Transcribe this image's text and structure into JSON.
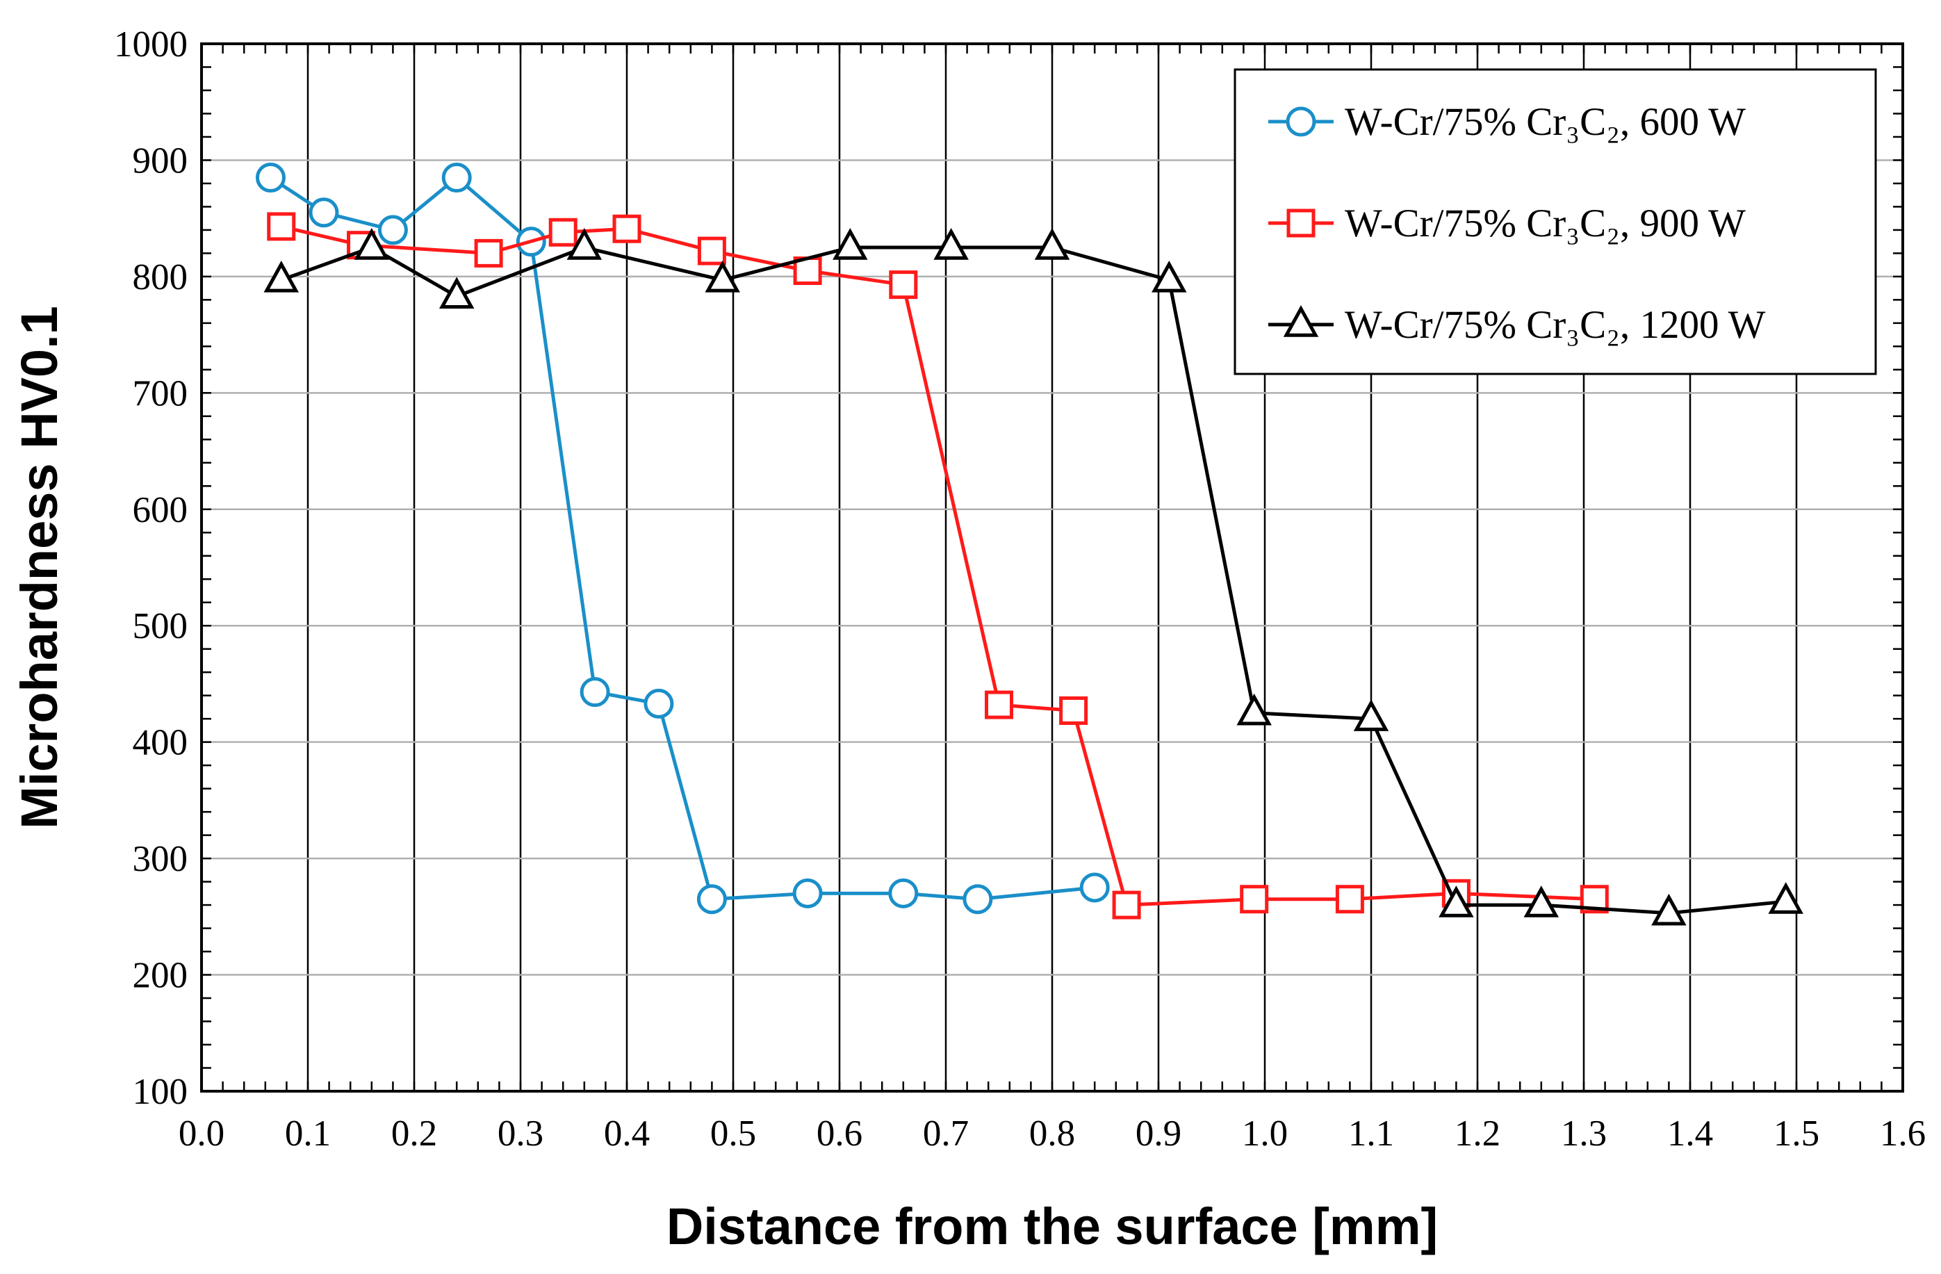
{
  "chart_data": {
    "type": "line",
    "title": "",
    "xlabel": "Distance from the surface [mm]",
    "ylabel": "Microhardness HV0.1",
    "xlim": [
      0.0,
      1.6
    ],
    "ylim": [
      100,
      1000
    ],
    "x_ticks": [
      "0.0",
      "0.1",
      "0.2",
      "0.3",
      "0.4",
      "0.5",
      "0.6",
      "0.7",
      "0.8",
      "0.9",
      "1.0",
      "1.1",
      "1.2",
      "1.3",
      "1.4",
      "1.5",
      "1.6"
    ],
    "y_ticks": [
      "100",
      "200",
      "300",
      "400",
      "500",
      "600",
      "700",
      "800",
      "900",
      "1000"
    ],
    "grid": true,
    "legend_position": "top-right",
    "series": [
      {
        "name": "W-Cr/75% Cr₃C₂, 600 W",
        "color": "#1a8fc9",
        "marker": "circle",
        "x": [
          0.065,
          0.115,
          0.18,
          0.24,
          0.31,
          0.37,
          0.43,
          0.48,
          0.57,
          0.66,
          0.73,
          0.84
        ],
        "y": [
          885,
          855,
          840,
          885,
          830,
          443,
          433,
          265,
          270,
          270,
          265,
          275
        ]
      },
      {
        "name": "W-Cr/75% Cr₃C₂, 900 W",
        "color": "#ff1a1a",
        "marker": "square",
        "x": [
          0.075,
          0.15,
          0.27,
          0.34,
          0.4,
          0.48,
          0.57,
          0.66,
          0.75,
          0.82,
          0.87,
          0.99,
          1.08,
          1.18,
          1.31
        ],
        "y": [
          843,
          827,
          820,
          838,
          841,
          822,
          805,
          793,
          432,
          427,
          260,
          265,
          265,
          270,
          265
        ]
      },
      {
        "name": "W-Cr/75% Cr₃C₂, 1200 W",
        "color": "#000000",
        "marker": "triangle",
        "x": [
          0.075,
          0.16,
          0.24,
          0.36,
          0.49,
          0.61,
          0.705,
          0.8,
          0.91,
          0.99,
          1.1,
          1.18,
          1.26,
          1.38,
          1.49
        ],
        "y": [
          797,
          825,
          783,
          825,
          797,
          825,
          825,
          825,
          797,
          425,
          420,
          260,
          260,
          253,
          263
        ]
      }
    ]
  }
}
